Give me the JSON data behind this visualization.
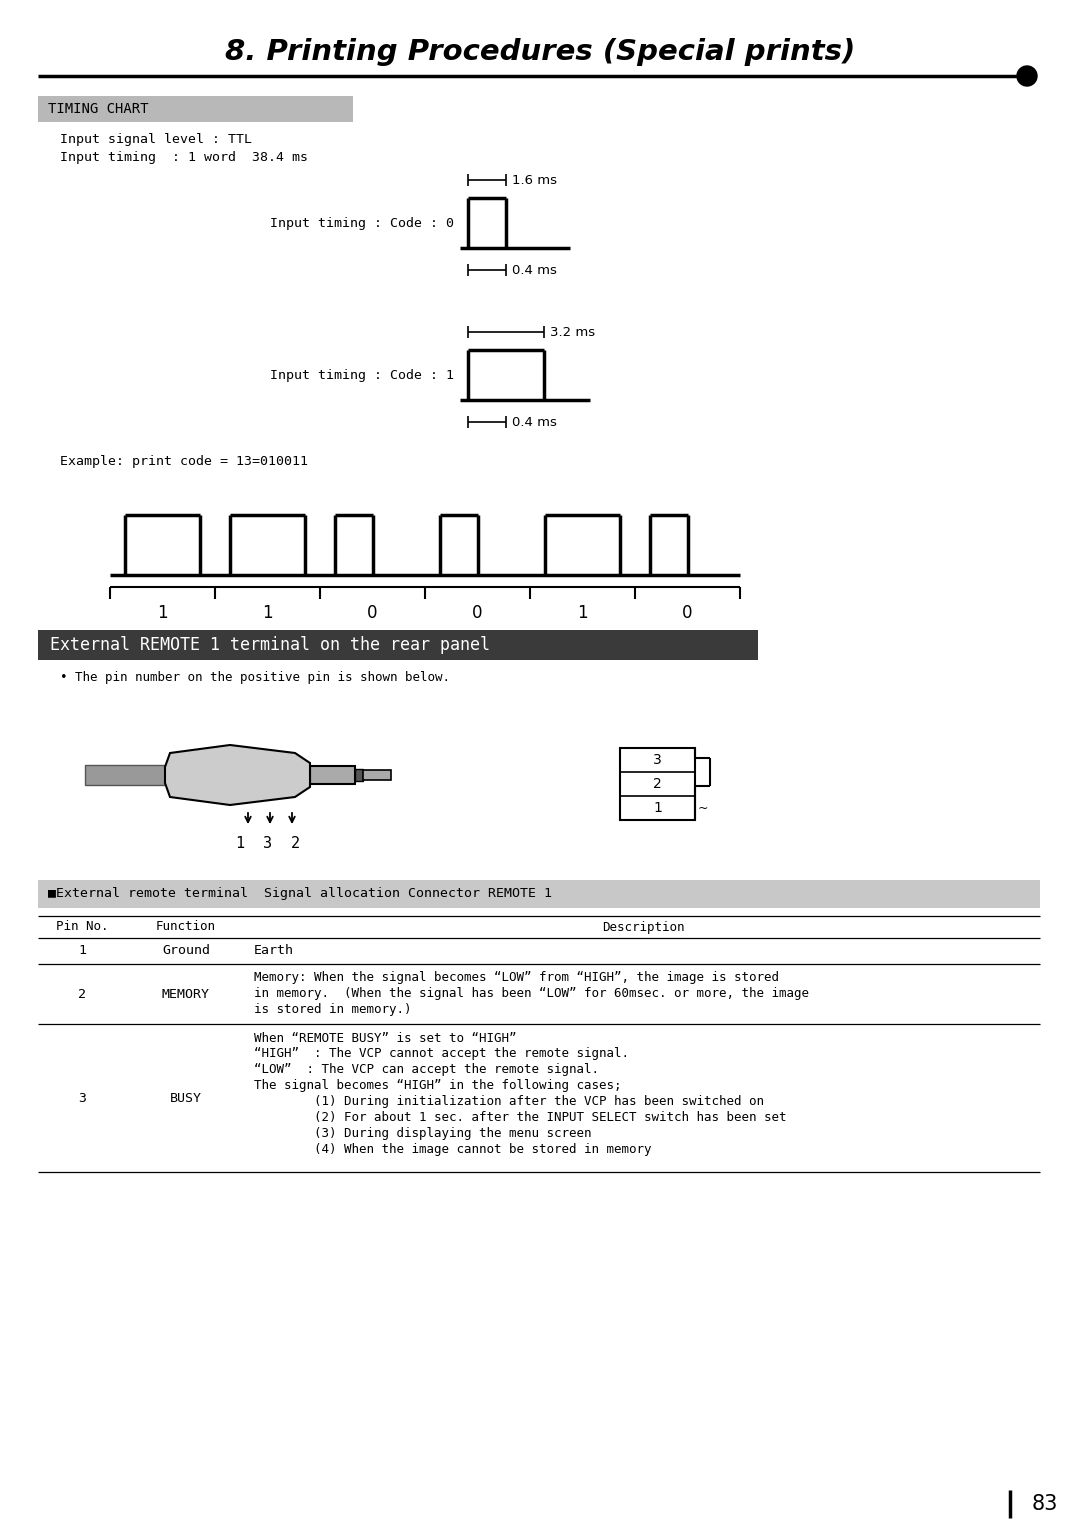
{
  "title": "8. Printing Procedures (Special prints)",
  "section1_header": "TIMING CHART",
  "section1_bg": "#b8b8b8",
  "section2_header": "External REMOTE 1 terminal on the rear panel",
  "section2_bg": "#3a3a3a",
  "section2_text_color": "#ffffff",
  "section3_header": "■External remote terminal  Signal allocation Connector REMOTE 1",
  "section3_bg": "#c8c8c8",
  "info_line1": "Input signal level : TTL",
  "info_line2": "Input timing  : 1 word  38.4 ms",
  "code0_label": "Input timing : Code : 0",
  "code1_label": "Input timing : Code : 1",
  "label_16ms": "1.6 ms",
  "label_04ms_1": "0.4 ms",
  "label_32ms": "3.2 ms",
  "label_04ms_2": "0.4 ms",
  "example_label": "Example: print code = 13=010011",
  "bit_labels": [
    "1",
    "1",
    "0",
    "0",
    "1",
    "0"
  ],
  "pin_note": "• The pin number on the positive pin is shown below.",
  "table_headers": [
    "Pin No.",
    "Function",
    "Description"
  ],
  "table_row1": [
    "1",
    "Ground",
    "Earth"
  ],
  "table_row2_pin": "2",
  "table_row2_func": "MEMORY",
  "table_row2_desc1": "Memory: When the signal becomes “LOW” from “HIGH”, the image is stored",
  "table_row2_desc2": "in memory.  (When the signal has been “LOW” for 60msec. or more, the image",
  "table_row2_desc3": "is stored in memory.)",
  "table_row3_pin": "3",
  "table_row3_func": "BUSY",
  "table_row3_desc": [
    "When “REMOTE BUSY” is set to “HIGH”",
    "“HIGH”  : The VCP cannot accept the remote signal.",
    "“LOW”  : The VCP can accept the remote signal.",
    "The signal becomes “HIGH” in the following cases;",
    "        (1) During initialization after the VCP has been switched on",
    "        (2) For about 1 sec. after the INPUT SELECT switch has been set",
    "        (3) During displaying the menu screen",
    "        (4) When the image cannot be stored in memory"
  ],
  "page_number": "83",
  "bg_color": "#ffffff",
  "text_color": "#000000"
}
